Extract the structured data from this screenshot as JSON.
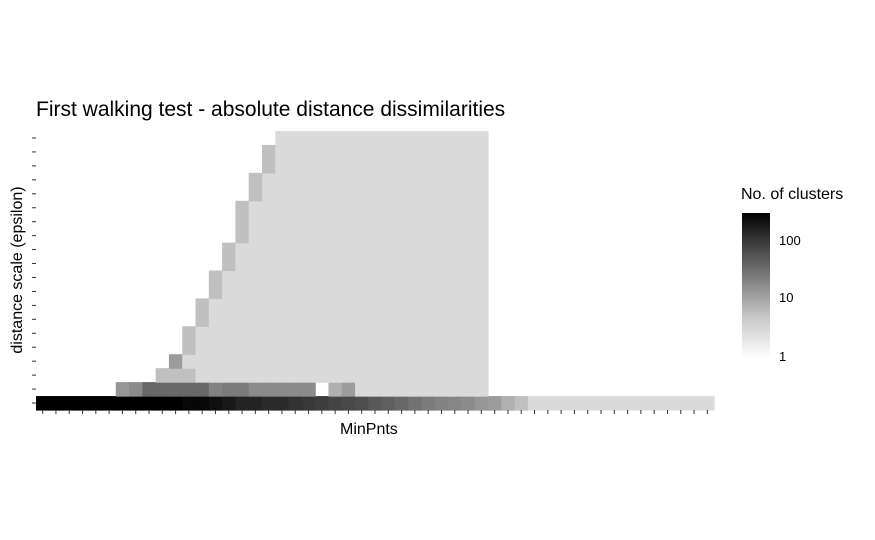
{
  "chart_data": {
    "type": "heatmap",
    "title": "First walking test - absolute distance dissimilarities",
    "xlabel": "MinPnts",
    "ylabel": "distance scale (epsilon)",
    "n_x": 51,
    "n_y": 20,
    "legend": {
      "title": "No. of clusters",
      "scale": "log",
      "range": [
        1,
        300
      ],
      "ticks": [
        "100",
        "10",
        "1"
      ],
      "tick_values": [
        100,
        10,
        1
      ],
      "low_color": "#ffffff",
      "high_color": "#000000",
      "placement": "right"
    },
    "cells": [
      {
        "y": 1,
        "values": [
          300,
          300,
          300,
          300,
          300,
          300,
          300,
          300,
          300,
          300,
          300,
          250,
          250,
          200,
          160,
          120,
          120,
          100,
          100,
          80,
          70,
          60,
          50,
          45,
          40,
          30,
          25,
          20,
          15,
          12,
          10,
          9,
          8,
          6,
          5,
          3,
          2,
          1,
          1,
          1,
          1,
          1,
          1,
          1,
          1,
          1,
          1,
          1,
          1,
          1,
          1
        ]
      },
      {
        "y": 2,
        "values": [
          null,
          null,
          null,
          null,
          null,
          null,
          6,
          8,
          20,
          20,
          20,
          20,
          20,
          10,
          12,
          12,
          8,
          8,
          8,
          8,
          8,
          null,
          3,
          5,
          1,
          1,
          1,
          1,
          1,
          1,
          1,
          1,
          1,
          1,
          null,
          null,
          null,
          null,
          null,
          null,
          null,
          null,
          null,
          null,
          null,
          null,
          null,
          null,
          null,
          null,
          null
        ]
      },
      {
        "y": 3,
        "values": [
          null,
          null,
          null,
          null,
          null,
          null,
          null,
          null,
          null,
          2,
          2,
          2,
          1,
          1,
          1,
          1,
          1,
          1,
          1,
          1,
          1,
          1,
          1,
          1,
          1,
          1,
          1,
          1,
          1,
          1,
          1,
          1,
          1,
          1,
          null,
          null,
          null,
          null,
          null,
          null,
          null,
          null,
          null,
          null,
          null,
          null,
          null,
          null,
          null,
          null,
          null
        ]
      },
      {
        "y": 4,
        "values": [
          null,
          null,
          null,
          null,
          null,
          null,
          null,
          null,
          null,
          null,
          5,
          1,
          1,
          1,
          1,
          1,
          1,
          1,
          1,
          1,
          1,
          1,
          1,
          1,
          1,
          1,
          1,
          1,
          1,
          1,
          1,
          1,
          1,
          1,
          null,
          null,
          null,
          null,
          null,
          null,
          null,
          null,
          null,
          null,
          null,
          null,
          null,
          null,
          null,
          null,
          null
        ]
      },
      {
        "y": 5,
        "values": [
          null,
          null,
          null,
          null,
          null,
          null,
          null,
          null,
          null,
          null,
          null,
          2,
          1,
          1,
          1,
          1,
          1,
          1,
          1,
          1,
          1,
          1,
          1,
          1,
          1,
          1,
          1,
          1,
          1,
          1,
          1,
          1,
          1,
          1,
          null,
          null,
          null,
          null,
          null,
          null,
          null,
          null,
          null,
          null,
          null,
          null,
          null,
          null,
          null,
          null,
          null
        ]
      },
      {
        "y": 6,
        "values": [
          null,
          null,
          null,
          null,
          null,
          null,
          null,
          null,
          null,
          null,
          null,
          2,
          1,
          1,
          1,
          1,
          1,
          1,
          1,
          1,
          1,
          1,
          1,
          1,
          1,
          1,
          1,
          1,
          1,
          1,
          1,
          1,
          1,
          1,
          null,
          null,
          null,
          null,
          null,
          null,
          null,
          null,
          null,
          null,
          null,
          null,
          null,
          null,
          null,
          null,
          null
        ]
      },
      {
        "y": 7,
        "values": [
          null,
          null,
          null,
          null,
          null,
          null,
          null,
          null,
          null,
          null,
          null,
          null,
          2,
          1,
          1,
          1,
          1,
          1,
          1,
          1,
          1,
          1,
          1,
          1,
          1,
          1,
          1,
          1,
          1,
          1,
          1,
          1,
          1,
          1,
          null,
          null,
          null,
          null,
          null,
          null,
          null,
          null,
          null,
          null,
          null,
          null,
          null,
          null,
          null,
          null,
          null
        ]
      },
      {
        "y": 8,
        "values": [
          null,
          null,
          null,
          null,
          null,
          null,
          null,
          null,
          null,
          null,
          null,
          null,
          2,
          1,
          1,
          1,
          1,
          1,
          1,
          1,
          1,
          1,
          1,
          1,
          1,
          1,
          1,
          1,
          1,
          1,
          1,
          1,
          1,
          1,
          null,
          null,
          null,
          null,
          null,
          null,
          null,
          null,
          null,
          null,
          null,
          null,
          null,
          null,
          null,
          null,
          null
        ]
      },
      {
        "y": 9,
        "values": [
          null,
          null,
          null,
          null,
          null,
          null,
          null,
          null,
          null,
          null,
          null,
          null,
          null,
          2,
          1,
          1,
          1,
          1,
          1,
          1,
          1,
          1,
          1,
          1,
          1,
          1,
          1,
          1,
          1,
          1,
          1,
          1,
          1,
          1,
          null,
          null,
          null,
          null,
          null,
          null,
          null,
          null,
          null,
          null,
          null,
          null,
          null,
          null,
          null,
          null,
          null
        ]
      },
      {
        "y": 10,
        "values": [
          null,
          null,
          null,
          null,
          null,
          null,
          null,
          null,
          null,
          null,
          null,
          null,
          null,
          2,
          1,
          1,
          1,
          1,
          1,
          1,
          1,
          1,
          1,
          1,
          1,
          1,
          1,
          1,
          1,
          1,
          1,
          1,
          1,
          1,
          null,
          null,
          null,
          null,
          null,
          null,
          null,
          null,
          null,
          null,
          null,
          null,
          null,
          null,
          null,
          null,
          null
        ]
      },
      {
        "y": 11,
        "values": [
          null,
          null,
          null,
          null,
          null,
          null,
          null,
          null,
          null,
          null,
          null,
          null,
          null,
          null,
          2,
          1,
          1,
          1,
          1,
          1,
          1,
          1,
          1,
          1,
          1,
          1,
          1,
          1,
          1,
          1,
          1,
          1,
          1,
          1,
          null,
          null,
          null,
          null,
          null,
          null,
          null,
          null,
          null,
          null,
          null,
          null,
          null,
          null,
          null,
          null,
          null
        ]
      },
      {
        "y": 12,
        "values": [
          null,
          null,
          null,
          null,
          null,
          null,
          null,
          null,
          null,
          null,
          null,
          null,
          null,
          null,
          2,
          1,
          1,
          1,
          1,
          1,
          1,
          1,
          1,
          1,
          1,
          1,
          1,
          1,
          1,
          1,
          1,
          1,
          1,
          1,
          null,
          null,
          null,
          null,
          null,
          null,
          null,
          null,
          null,
          null,
          null,
          null,
          null,
          null,
          null,
          null,
          null
        ]
      },
      {
        "y": 13,
        "values": [
          null,
          null,
          null,
          null,
          null,
          null,
          null,
          null,
          null,
          null,
          null,
          null,
          null,
          null,
          null,
          2,
          1,
          1,
          1,
          1,
          1,
          1,
          1,
          1,
          1,
          1,
          1,
          1,
          1,
          1,
          1,
          1,
          1,
          1,
          null,
          null,
          null,
          null,
          null,
          null,
          null,
          null,
          null,
          null,
          null,
          null,
          null,
          null,
          null,
          null,
          null
        ]
      },
      {
        "y": 14,
        "values": [
          null,
          null,
          null,
          null,
          null,
          null,
          null,
          null,
          null,
          null,
          null,
          null,
          null,
          null,
          null,
          2,
          1,
          1,
          1,
          1,
          1,
          1,
          1,
          1,
          1,
          1,
          1,
          1,
          1,
          1,
          1,
          1,
          1,
          1,
          null,
          null,
          null,
          null,
          null,
          null,
          null,
          null,
          null,
          null,
          null,
          null,
          null,
          null,
          null,
          null,
          null
        ]
      },
      {
        "y": 15,
        "values": [
          null,
          null,
          null,
          null,
          null,
          null,
          null,
          null,
          null,
          null,
          null,
          null,
          null,
          null,
          null,
          2,
          1,
          1,
          1,
          1,
          1,
          1,
          1,
          1,
          1,
          1,
          1,
          1,
          1,
          1,
          1,
          1,
          1,
          1,
          null,
          null,
          null,
          null,
          null,
          null,
          null,
          null,
          null,
          null,
          null,
          null,
          null,
          null,
          null,
          null,
          null
        ]
      },
      {
        "y": 16,
        "values": [
          null,
          null,
          null,
          null,
          null,
          null,
          null,
          null,
          null,
          null,
          null,
          null,
          null,
          null,
          null,
          null,
          2,
          1,
          1,
          1,
          1,
          1,
          1,
          1,
          1,
          1,
          1,
          1,
          1,
          1,
          1,
          1,
          1,
          1,
          null,
          null,
          null,
          null,
          null,
          null,
          null,
          null,
          null,
          null,
          null,
          null,
          null,
          null,
          null,
          null,
          null
        ]
      },
      {
        "y": 17,
        "values": [
          null,
          null,
          null,
          null,
          null,
          null,
          null,
          null,
          null,
          null,
          null,
          null,
          null,
          null,
          null,
          null,
          2,
          1,
          1,
          1,
          1,
          1,
          1,
          1,
          1,
          1,
          1,
          1,
          1,
          1,
          1,
          1,
          1,
          1,
          null,
          null,
          null,
          null,
          null,
          null,
          null,
          null,
          null,
          null,
          null,
          null,
          null,
          null,
          null,
          null,
          null
        ]
      },
      {
        "y": 18,
        "values": [
          null,
          null,
          null,
          null,
          null,
          null,
          null,
          null,
          null,
          null,
          null,
          null,
          null,
          null,
          null,
          null,
          null,
          2,
          1,
          1,
          1,
          1,
          1,
          1,
          1,
          1,
          1,
          1,
          1,
          1,
          1,
          1,
          1,
          1,
          null,
          null,
          null,
          null,
          null,
          null,
          null,
          null,
          null,
          null,
          null,
          null,
          null,
          null,
          null,
          null,
          null
        ]
      },
      {
        "y": 19,
        "values": [
          null,
          null,
          null,
          null,
          null,
          null,
          null,
          null,
          null,
          null,
          null,
          null,
          null,
          null,
          null,
          null,
          null,
          2,
          1,
          1,
          1,
          1,
          1,
          1,
          1,
          1,
          1,
          1,
          1,
          1,
          1,
          1,
          1,
          1,
          null,
          null,
          null,
          null,
          null,
          null,
          null,
          null,
          null,
          null,
          null,
          null,
          null,
          null,
          null,
          null,
          null
        ]
      },
      {
        "y": 20,
        "values": [
          null,
          null,
          null,
          null,
          null,
          null,
          null,
          null,
          null,
          null,
          null,
          null,
          null,
          null,
          null,
          null,
          null,
          null,
          1,
          1,
          1,
          1,
          1,
          1,
          1,
          1,
          1,
          1,
          1,
          1,
          1,
          1,
          1,
          1,
          null,
          null,
          null,
          null,
          null,
          null,
          null,
          null,
          null,
          null,
          null,
          null,
          null,
          null,
          null,
          null,
          null
        ]
      }
    ]
  }
}
